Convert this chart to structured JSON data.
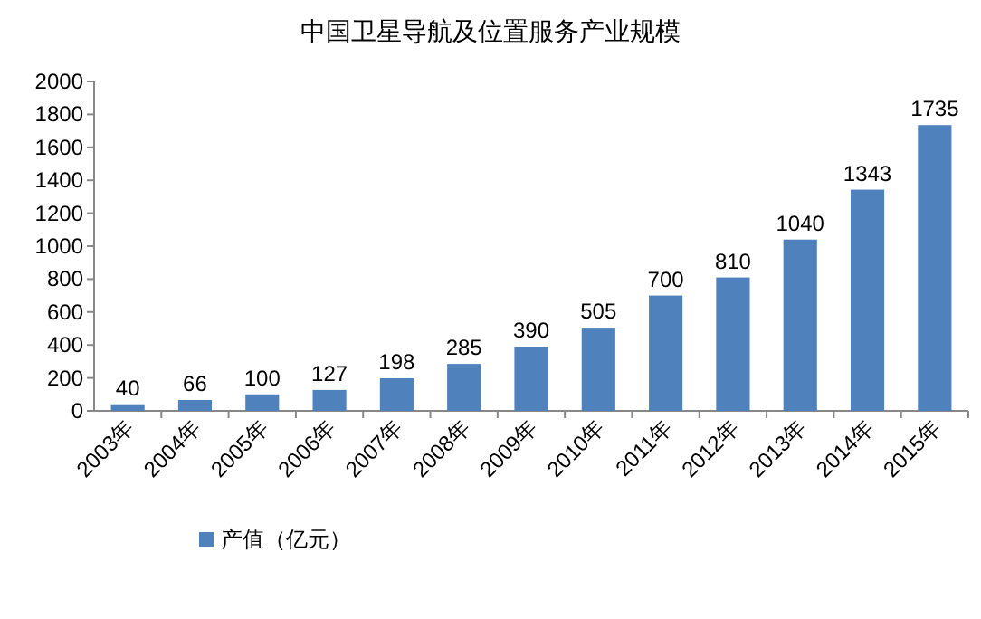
{
  "chart_data": {
    "type": "bar",
    "title": "中国卫星导航及位置服务产业规模",
    "categories": [
      "2003年",
      "2004年",
      "2005年",
      "2006年",
      "2007年",
      "2008年",
      "2009年",
      "2010年",
      "2011年",
      "2012年",
      "2013年",
      "2014年",
      "2015年"
    ],
    "series": [
      {
        "name": "产值（亿元）",
        "color": "#4f81bd",
        "values": [
          40,
          66,
          100,
          127,
          198,
          285,
          390,
          505,
          700,
          810,
          1040,
          1343,
          1735
        ]
      }
    ],
    "ylim": [
      0,
      2000
    ],
    "yticks": [
      0,
      200,
      400,
      600,
      800,
      1000,
      1200,
      1400,
      1600,
      1800,
      2000
    ],
    "data_labels": true,
    "legend": "bottom"
  }
}
